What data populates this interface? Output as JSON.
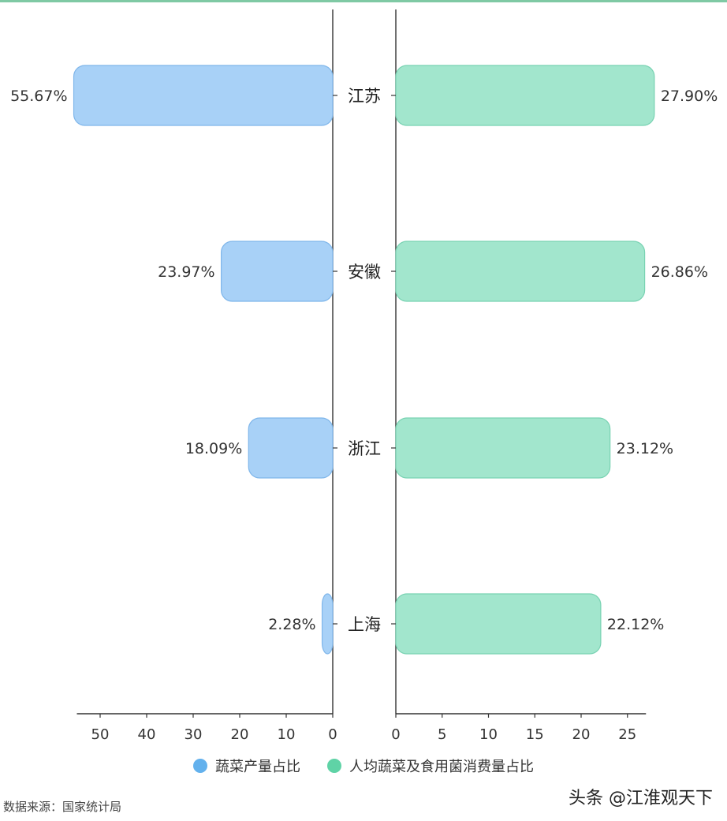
{
  "chart_data": {
    "type": "bar",
    "orientation": "horizontal-butterfly",
    "categories": [
      "江苏",
      "安徽",
      "浙江",
      "上海"
    ],
    "series": [
      {
        "name": "蔬菜产量占比",
        "values": [
          55.67,
          23.97,
          18.09,
          2.28
        ],
        "labels": [
          "55.67%",
          "23.97%",
          "18.09%",
          "2.28%"
        ],
        "color": "#a8d1f7",
        "stroke": "#7fb6ea",
        "axis_range": [
          0,
          55
        ],
        "ticks": [
          0,
          10,
          20,
          30,
          40,
          50
        ],
        "direction": "left"
      },
      {
        "name": "人均蔬菜及食用菌消费量占比",
        "values": [
          27.9,
          26.86,
          23.12,
          22.12
        ],
        "labels": [
          "27.90%",
          "26.86%",
          "23.12%",
          "22.12%"
        ],
        "color": "#a2e6cd",
        "stroke": "#78d2b2",
        "axis_range": [
          0,
          27
        ],
        "ticks": [
          0,
          5,
          10,
          15,
          20,
          25
        ],
        "direction": "right"
      }
    ],
    "legend": {
      "placement": "bottom-center",
      "items": [
        {
          "label": "蔬菜产量占比",
          "color": "#63b1ed"
        },
        {
          "label": "人均蔬菜及食用菌消费量占比",
          "color": "#5fd3a6"
        }
      ]
    },
    "grid": false
  },
  "source_text": "数据来源：国家统计局",
  "credit_text": "头条 @江淮观天下"
}
